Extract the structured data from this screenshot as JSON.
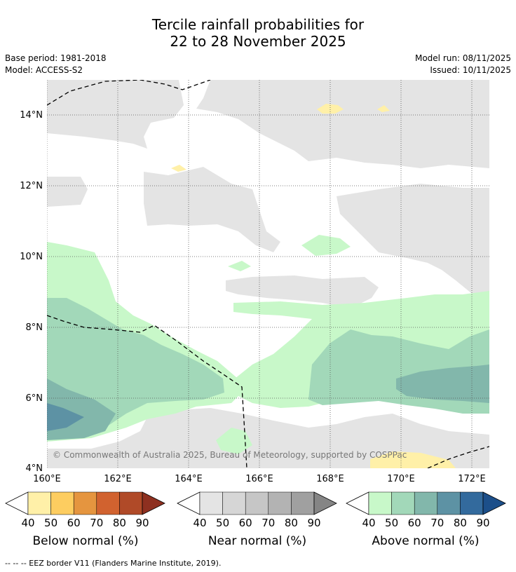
{
  "title": {
    "line1": "Tercile rainfall probabilities for",
    "line2": "22 to 28 November 2025"
  },
  "meta": {
    "base_period": "Base period: 1981-2018",
    "model": "Model: ACCESS-S2",
    "model_run": "Model run: 08/11/2025",
    "issued": "Issued: 10/11/2025"
  },
  "map": {
    "lat_labels": [
      "14°N",
      "12°N",
      "10°N",
      "8°N",
      "6°N",
      "4°N"
    ],
    "lon_labels": [
      "160°E",
      "162°E",
      "164°E",
      "166°E",
      "168°E",
      "170°E",
      "172°E"
    ],
    "copyright": "© Commonwealth of Australia 2025, Bureau of Meteorology, supported by COSPPac"
  },
  "colorbars": [
    {
      "title": "Below normal (%)",
      "ticks": [
        "40",
        "50",
        "60",
        "70",
        "80",
        "90"
      ],
      "colors": [
        "#fff0a8",
        "#fdcd60",
        "#e5953f",
        "#d1622f",
        "#b04a28",
        "#8e3020"
      ]
    },
    {
      "title": "Near normal (%)",
      "ticks": [
        "40",
        "50",
        "60",
        "70",
        "80",
        "90"
      ],
      "colors": [
        "#e4e4e4",
        "#d6d6d6",
        "#c6c6c6",
        "#b3b3b3",
        "#a0a0a0",
        "#858585"
      ]
    },
    {
      "title": "Above normal (%)",
      "ticks": [
        "40",
        "50",
        "60",
        "70",
        "80",
        "90"
      ],
      "colors": [
        "#c8f8c9",
        "#a2d8b9",
        "#82b7ab",
        "#5d92a4",
        "#336a9d",
        "#1c4f8a"
      ]
    }
  ],
  "footer": "--  --  -- EEZ border V11 (Flanders Marine Institute, 2019)."
}
